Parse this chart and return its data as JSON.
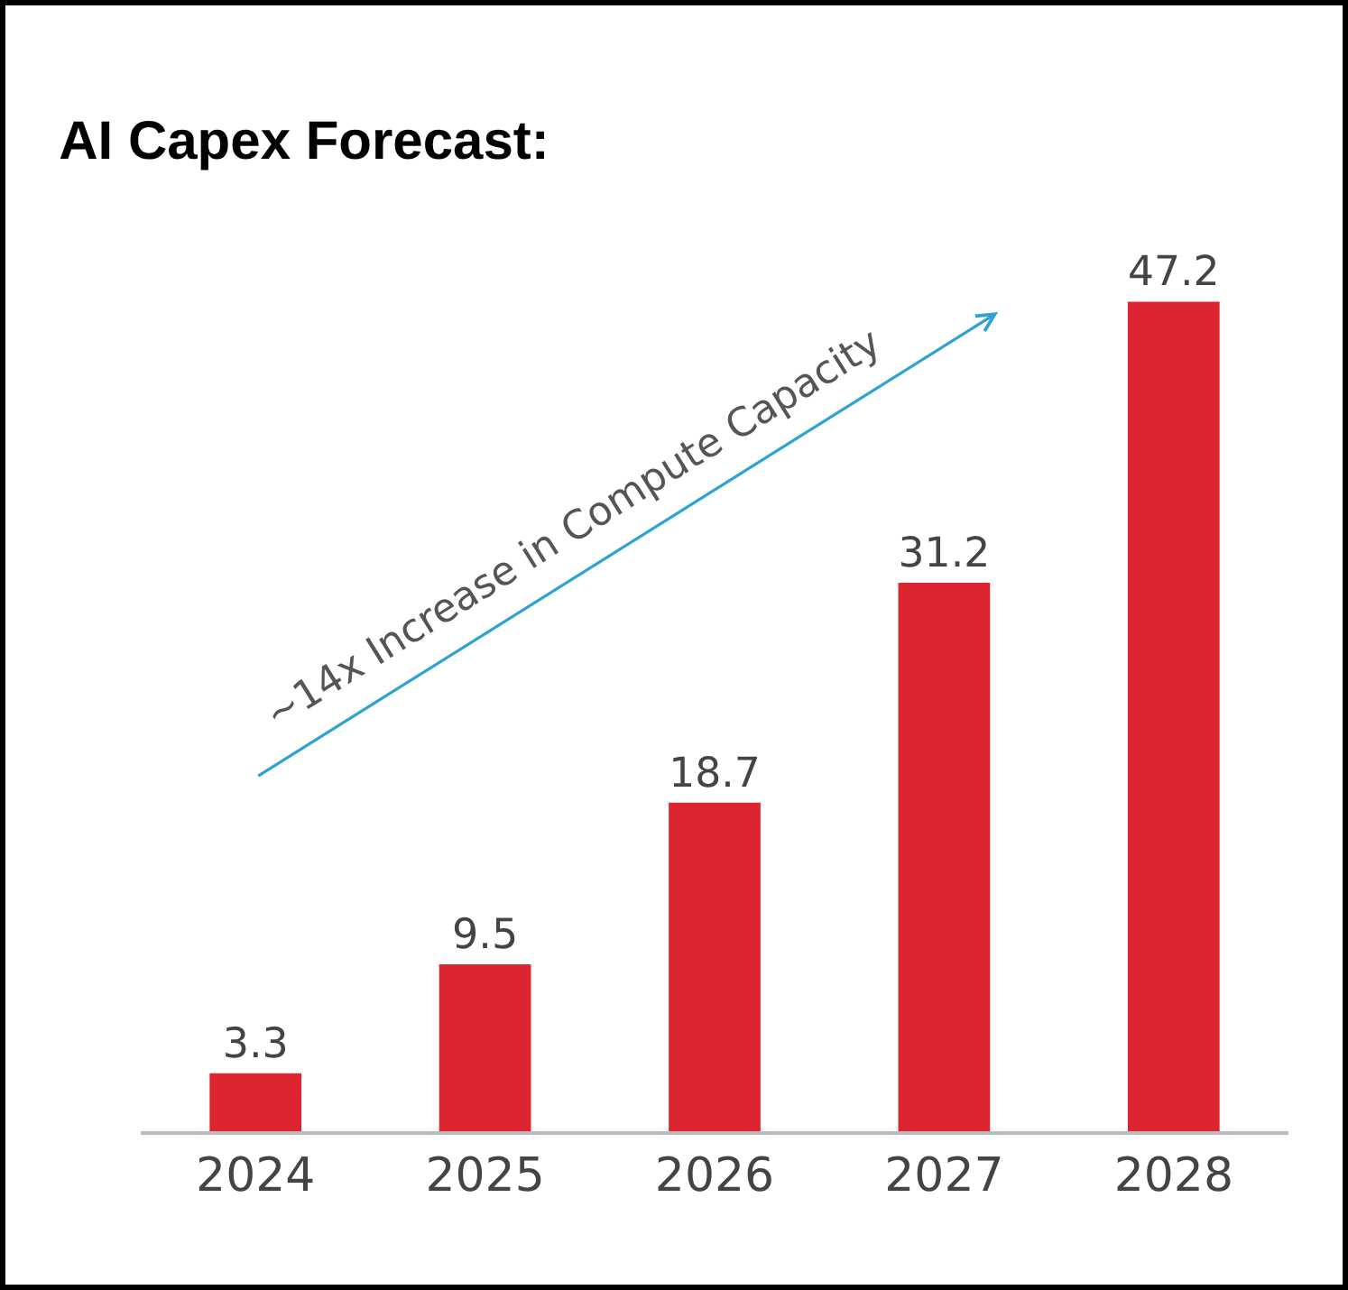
{
  "chart_data": {
    "type": "bar",
    "title": "AI Capex Forecast:",
    "categories": [
      "2024",
      "2025",
      "2026",
      "2027",
      "2028"
    ],
    "values": [
      3.3,
      9.5,
      18.7,
      31.2,
      47.2
    ],
    "color": "#dc2530",
    "data_labels": true,
    "annotations": [
      "~14x Increase in Compute Capacity"
    ]
  }
}
